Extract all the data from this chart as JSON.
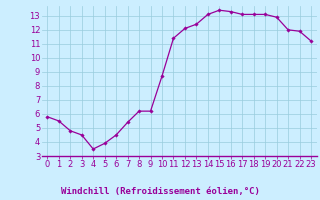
{
  "x": [
    0,
    1,
    2,
    3,
    4,
    5,
    6,
    7,
    8,
    9,
    10,
    11,
    12,
    13,
    14,
    15,
    16,
    17,
    18,
    19,
    20,
    21,
    22,
    23
  ],
  "y": [
    5.8,
    5.5,
    4.8,
    4.5,
    3.5,
    3.9,
    4.5,
    5.4,
    6.2,
    6.2,
    8.7,
    11.4,
    12.1,
    12.4,
    13.1,
    13.4,
    13.3,
    13.1,
    13.1,
    13.1,
    12.9,
    12.0,
    11.9,
    11.2
  ],
  "line_color": "#990099",
  "marker": "D",
  "markersize": 1.8,
  "linewidth": 0.9,
  "xlabel": "Windchill (Refroidissement éolien,°C)",
  "xlim": [
    -0.5,
    23.5
  ],
  "ylim": [
    3,
    13.7
  ],
  "yticks": [
    3,
    4,
    5,
    6,
    7,
    8,
    9,
    10,
    11,
    12,
    13
  ],
  "xticks": [
    0,
    1,
    2,
    3,
    4,
    5,
    6,
    7,
    8,
    9,
    10,
    11,
    12,
    13,
    14,
    15,
    16,
    17,
    18,
    19,
    20,
    21,
    22,
    23
  ],
  "bg_color": "#cceeff",
  "grid_color": "#99ccdd",
  "axis_bg": "#cceeff",
  "xlabel_color": "#990099",
  "xlabel_fontsize": 6.5,
  "tick_fontsize": 6,
  "tick_color": "#990099",
  "separator_color": "#990099"
}
